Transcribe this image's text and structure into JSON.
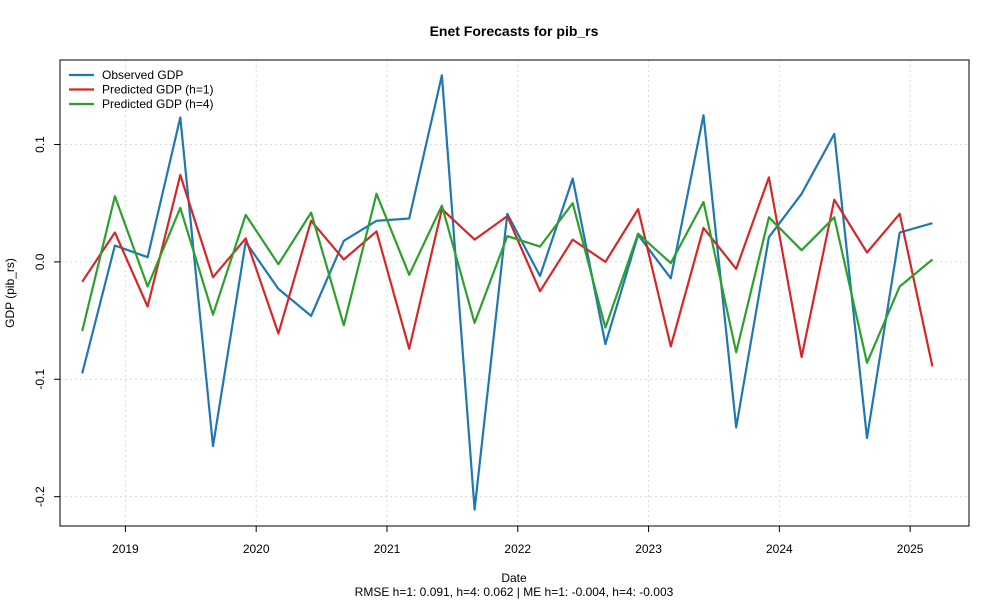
{
  "chart_data": {
    "type": "line",
    "title": "Enet Forecasts for pib_rs",
    "xlabel": "Date",
    "ylabel": "GDP (pib_rs)",
    "subtitle": "RMSE h=1: 0.091, h=4: 0.062  |  ME h=1: -0.004, h=4: -0.003",
    "xlim": [
      2018.5,
      2025.45
    ],
    "ylim": [
      -0.225,
      0.172
    ],
    "x_ticks": [
      2019,
      2020,
      2021,
      2022,
      2023,
      2024,
      2025
    ],
    "x_tick_labels": [
      "2019",
      "2020",
      "2021",
      "2022",
      "2023",
      "2024",
      "2025"
    ],
    "y_ticks": [
      -0.2,
      -0.1,
      0.0,
      0.1
    ],
    "y_tick_labels": [
      "-0.2",
      "-0.1",
      "0.0",
      "0.1"
    ],
    "grid": true,
    "legend_position": "top-left",
    "x": [
      2018.67,
      2018.92,
      2019.17,
      2019.42,
      2019.67,
      2019.92,
      2020.17,
      2020.42,
      2020.67,
      2020.92,
      2021.17,
      2021.42,
      2021.67,
      2021.92,
      2022.17,
      2022.42,
      2022.67,
      2022.92,
      2023.17,
      2023.42,
      2023.67,
      2023.92,
      2024.17,
      2024.42,
      2024.67,
      2024.92,
      2025.17
    ],
    "series": [
      {
        "name": "Observed GDP",
        "color": "#1f77b4",
        "values": [
          -0.095,
          0.014,
          0.004,
          0.123,
          -0.157,
          0.017,
          -0.023,
          -0.046,
          0.018,
          0.035,
          0.037,
          0.159,
          -0.211,
          0.041,
          -0.012,
          0.071,
          -0.07,
          0.023,
          -0.014,
          0.125,
          -0.141,
          0.021,
          0.058,
          0.109,
          -0.15,
          0.025,
          0.033
        ]
      },
      {
        "name": "Predicted GDP (h=1)",
        "color": "#d62728",
        "values": [
          -0.017,
          0.025,
          -0.038,
          0.074,
          -0.013,
          0.02,
          -0.061,
          0.035,
          0.002,
          0.026,
          -0.074,
          0.045,
          0.019,
          0.039,
          -0.025,
          0.019,
          0.0,
          0.045,
          -0.072,
          0.029,
          -0.006,
          0.072,
          -0.081,
          0.053,
          0.008,
          0.041,
          -0.089
        ]
      },
      {
        "name": "Predicted GDP (h=4)",
        "color": "#2ca02c",
        "values": [
          -0.059,
          0.056,
          -0.021,
          0.046,
          -0.045,
          0.04,
          -0.002,
          0.042,
          -0.054,
          0.058,
          -0.011,
          0.048,
          -0.052,
          0.022,
          0.013,
          0.05,
          -0.056,
          0.024,
          -0.001,
          0.051,
          -0.077,
          0.038,
          0.01,
          0.038,
          -0.086,
          -0.021,
          0.002
        ]
      }
    ]
  }
}
